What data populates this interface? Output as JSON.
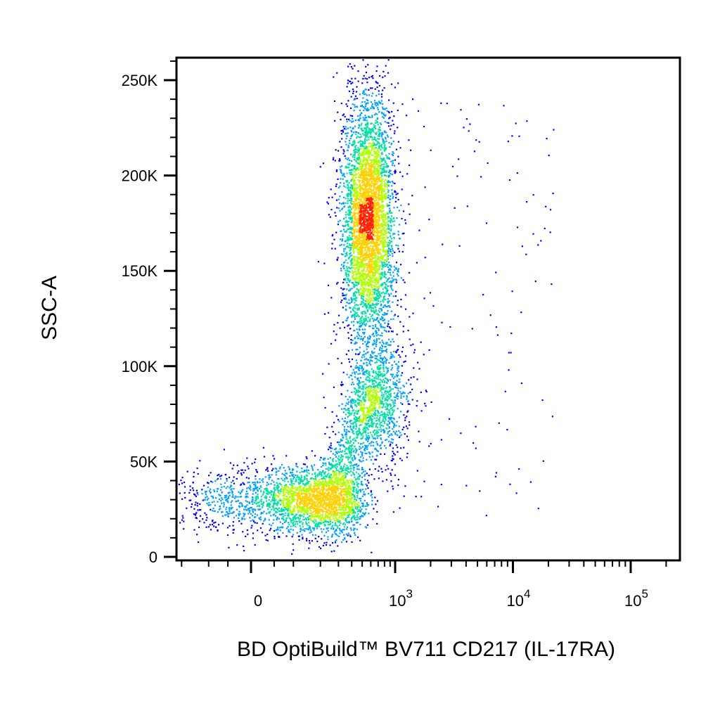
{
  "chart_data": {
    "type": "scatter",
    "plot_style": "density pseudocolor dot plot",
    "xlabel": "BD OptiBuild™ BV711 CD217 (IL-17RA)",
    "ylabel": "SSC-A",
    "x_scale": "biexponential",
    "y_scale": "linear",
    "xlim": [
      -400,
      200000
    ],
    "ylim": [
      -5000,
      262144
    ],
    "x_ticks": [
      {
        "value": 0,
        "label": "0"
      },
      {
        "value": 1000,
        "base": "10",
        "exp": "3"
      },
      {
        "value": 10000,
        "base": "10",
        "exp": "4"
      },
      {
        "value": 100000,
        "base": "10",
        "exp": "5"
      }
    ],
    "y_ticks": [
      {
        "value": 0,
        "label": "0"
      },
      {
        "value": 50000,
        "label": "50K"
      },
      {
        "value": 100000,
        "label": "100K"
      },
      {
        "value": 150000,
        "label": "150K"
      },
      {
        "value": 200000,
        "label": "200K"
      },
      {
        "value": 250000,
        "label": "250K"
      }
    ],
    "populations": [
      {
        "name": "",
        "x_center": 150,
        "y_center": 30000,
        "x_spread_log": 0.45,
        "y_spread": 9000,
        "events": 2600
      },
      {
        "name": "",
        "x_center": 560,
        "y_center": 178000,
        "x_spread_log": 0.12,
        "y_spread": 32000,
        "events": 4200
      },
      {
        "name": "",
        "x_center": 700,
        "y_center": 82000,
        "x_spread_log": 0.15,
        "y_spread": 18000,
        "events": 900
      }
    ],
    "colormap": [
      "#0000ff",
      "#00a0ff",
      "#00e0a0",
      "#b0ff00",
      "#ffd000",
      "#ff2000"
    ],
    "grid": false,
    "legend": "none"
  }
}
